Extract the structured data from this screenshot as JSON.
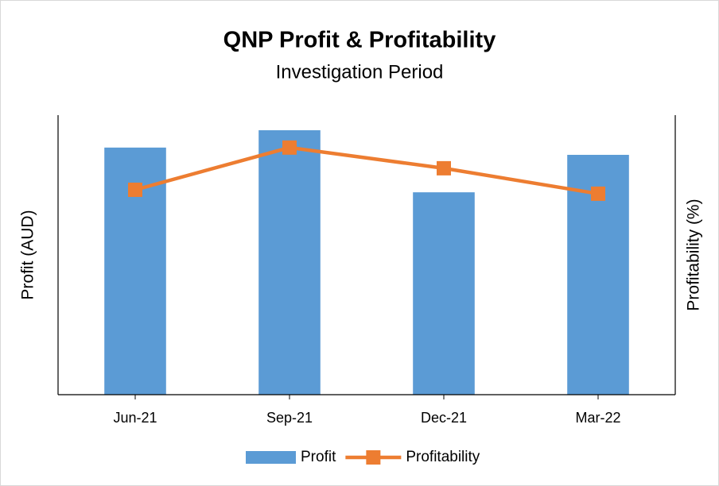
{
  "chart_data": {
    "type": "bar-line",
    "title": "QNP Profit & Profitability",
    "subtitle": "Investigation Period",
    "categories": [
      "Jun-21",
      "Sep-21",
      "Dec-21",
      "Mar-22"
    ],
    "ylabel": "Profit (AUD)",
    "y2label": "Profitability (%)",
    "ylim": [
      0,
      100
    ],
    "y2lim": [
      0,
      100
    ],
    "series": [
      {
        "name": "Profit",
        "type": "bar",
        "color": "#5b9bd5",
        "values": [
          88.4,
          94.6,
          72.4,
          85.8
        ]
      },
      {
        "name": "Profitability",
        "type": "line",
        "axis": "y2",
        "color": "#ed7d31",
        "values": [
          73.3,
          88.4,
          81.0,
          71.9
        ]
      }
    ],
    "legend": "bottom"
  }
}
